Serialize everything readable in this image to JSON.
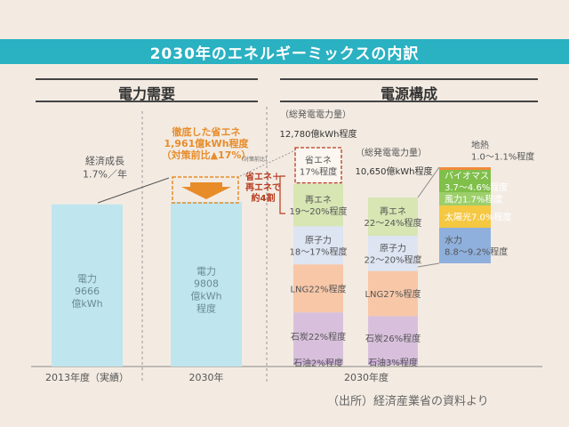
{
  "title": "2030年のエネルギーミックスの内訳",
  "sections": {
    "demand": "電力需要",
    "supply": "電源構成"
  },
  "source": "（出所）経済産業省の資料より",
  "colors": {
    "title_bg": "#2ab1c2",
    "demand_bar": "#bfe5ee",
    "accent_orange": "#e88c2a",
    "save_red": "#b83a1e",
    "renewable": "#d7e6b3",
    "nuclear": "#dde4f2",
    "lng": "#f7c7a8",
    "coal": "#d8c0dc",
    "oil": "#cbaed6",
    "geothermal": "#f08a3c",
    "biomass": "#7fbf4a",
    "wind": "#9ccf6a",
    "solar": "#f5c842",
    "hydro": "#8fb0dc"
  },
  "chart_data": {
    "type": "bar",
    "categories": [
      "2013年度（実績）",
      "2030年",
      "2030年"
    ],
    "demand": {
      "bars": [
        {
          "label_lines": [
            "電力",
            "9666",
            "億kWh"
          ],
          "value": 9666
        },
        {
          "label_lines": [
            "電力",
            "9808",
            "億kWh",
            "程度"
          ],
          "value": 9808
        }
      ],
      "growth_label": [
        "経済成長",
        "1.7%／年"
      ],
      "saving_callout": [
        "徹底した省エネ",
        "1,961億kWh程度",
        "（対策前比▲17%）"
      ],
      "before_measures_label": "（対策前比）"
    },
    "generation_total": {
      "header_label": "（総発電電力量）",
      "total": "12,780億kWh程度",
      "segments": [
        {
          "name": "省エネ",
          "label": [
            "省エネ",
            "17%程度"
          ],
          "share": 17,
          "dashed": true
        },
        {
          "name": "再エネ",
          "label": [
            "再エネ",
            "19～20%程度"
          ],
          "share": 19.5
        },
        {
          "name": "原子力",
          "label": [
            "原子力",
            "18～17%程度"
          ],
          "share": 17.5
        },
        {
          "name": "LNG",
          "label": [
            "LNG22%程度"
          ],
          "share": 22
        },
        {
          "name": "石炭",
          "label": [
            "石炭22%程度"
          ],
          "share": 22
        },
        {
          "name": "石油",
          "label": [
            "石油2%程度"
          ],
          "share": 2
        }
      ],
      "side_note": [
        "省エネ＋",
        "再エネで",
        "約4割"
      ]
    },
    "generation_net": {
      "header_label": "（総発電電力量）",
      "total": "10,650億kWh程度",
      "segments": [
        {
          "name": "再エネ",
          "label": [
            "再エネ",
            "22～24%程度"
          ],
          "share": 23
        },
        {
          "name": "原子力",
          "label": [
            "原子力",
            "22～20%程度"
          ],
          "share": 21
        },
        {
          "name": "LNG",
          "label": [
            "LNG27%程度"
          ],
          "share": 27
        },
        {
          "name": "石炭",
          "label": [
            "石炭26%程度"
          ],
          "share": 26
        },
        {
          "name": "石油",
          "label": [
            "石油3%程度"
          ],
          "share": 3
        }
      ]
    },
    "renewables_breakdown": [
      {
        "name": "地熱",
        "label": [
          "地熱",
          "1.0～1.1%程度"
        ],
        "share": 1.05
      },
      {
        "name": "バイオマス",
        "label": [
          "バイオマス",
          "3.7～4.6%程度"
        ],
        "share": 4.15
      },
      {
        "name": "風力",
        "label": [
          "風力1.7%程度"
        ],
        "share": 1.7
      },
      {
        "name": "太陽光",
        "label": [
          "太陽光7.0%程度"
        ],
        "share": 7.0
      },
      {
        "name": "水力",
        "label": [
          "水力",
          "8.8～9.2%程度"
        ],
        "share": 9.0
      }
    ],
    "xlabel_year": "2030年度"
  }
}
